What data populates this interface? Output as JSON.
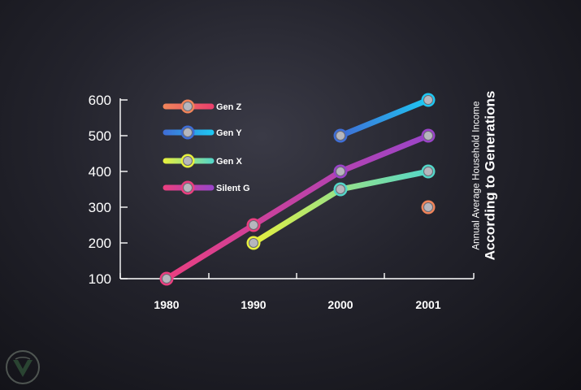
{
  "chart_data": {
    "type": "line",
    "title": "Annual Average Household Income",
    "subtitle": "According to Generations",
    "categories": [
      "1980",
      "1990",
      "2000",
      "2001"
    ],
    "ylim": [
      100,
      600
    ],
    "yticks": [
      100,
      200,
      300,
      400,
      500,
      600
    ],
    "xlabel": "",
    "ylabel": "",
    "legend_position": "top-left",
    "series": [
      {
        "name": "Gen Z",
        "values": [
          null,
          null,
          null,
          300
        ],
        "colors": [
          "#f0845a",
          "#ea3f6c"
        ]
      },
      {
        "name": "Gen Y",
        "values": [
          null,
          null,
          500,
          600
        ],
        "colors": [
          "#3f6ed6",
          "#1ec7f2"
        ]
      },
      {
        "name": "Gen X",
        "values": [
          null,
          200,
          350,
          400
        ],
        "colors": [
          "#e6f03e",
          "#54d6c8"
        ]
      },
      {
        "name": "Silent G",
        "values": [
          100,
          250,
          400,
          500
        ],
        "colors": [
          "#ea3f80",
          "#9a44c8"
        ]
      }
    ]
  }
}
